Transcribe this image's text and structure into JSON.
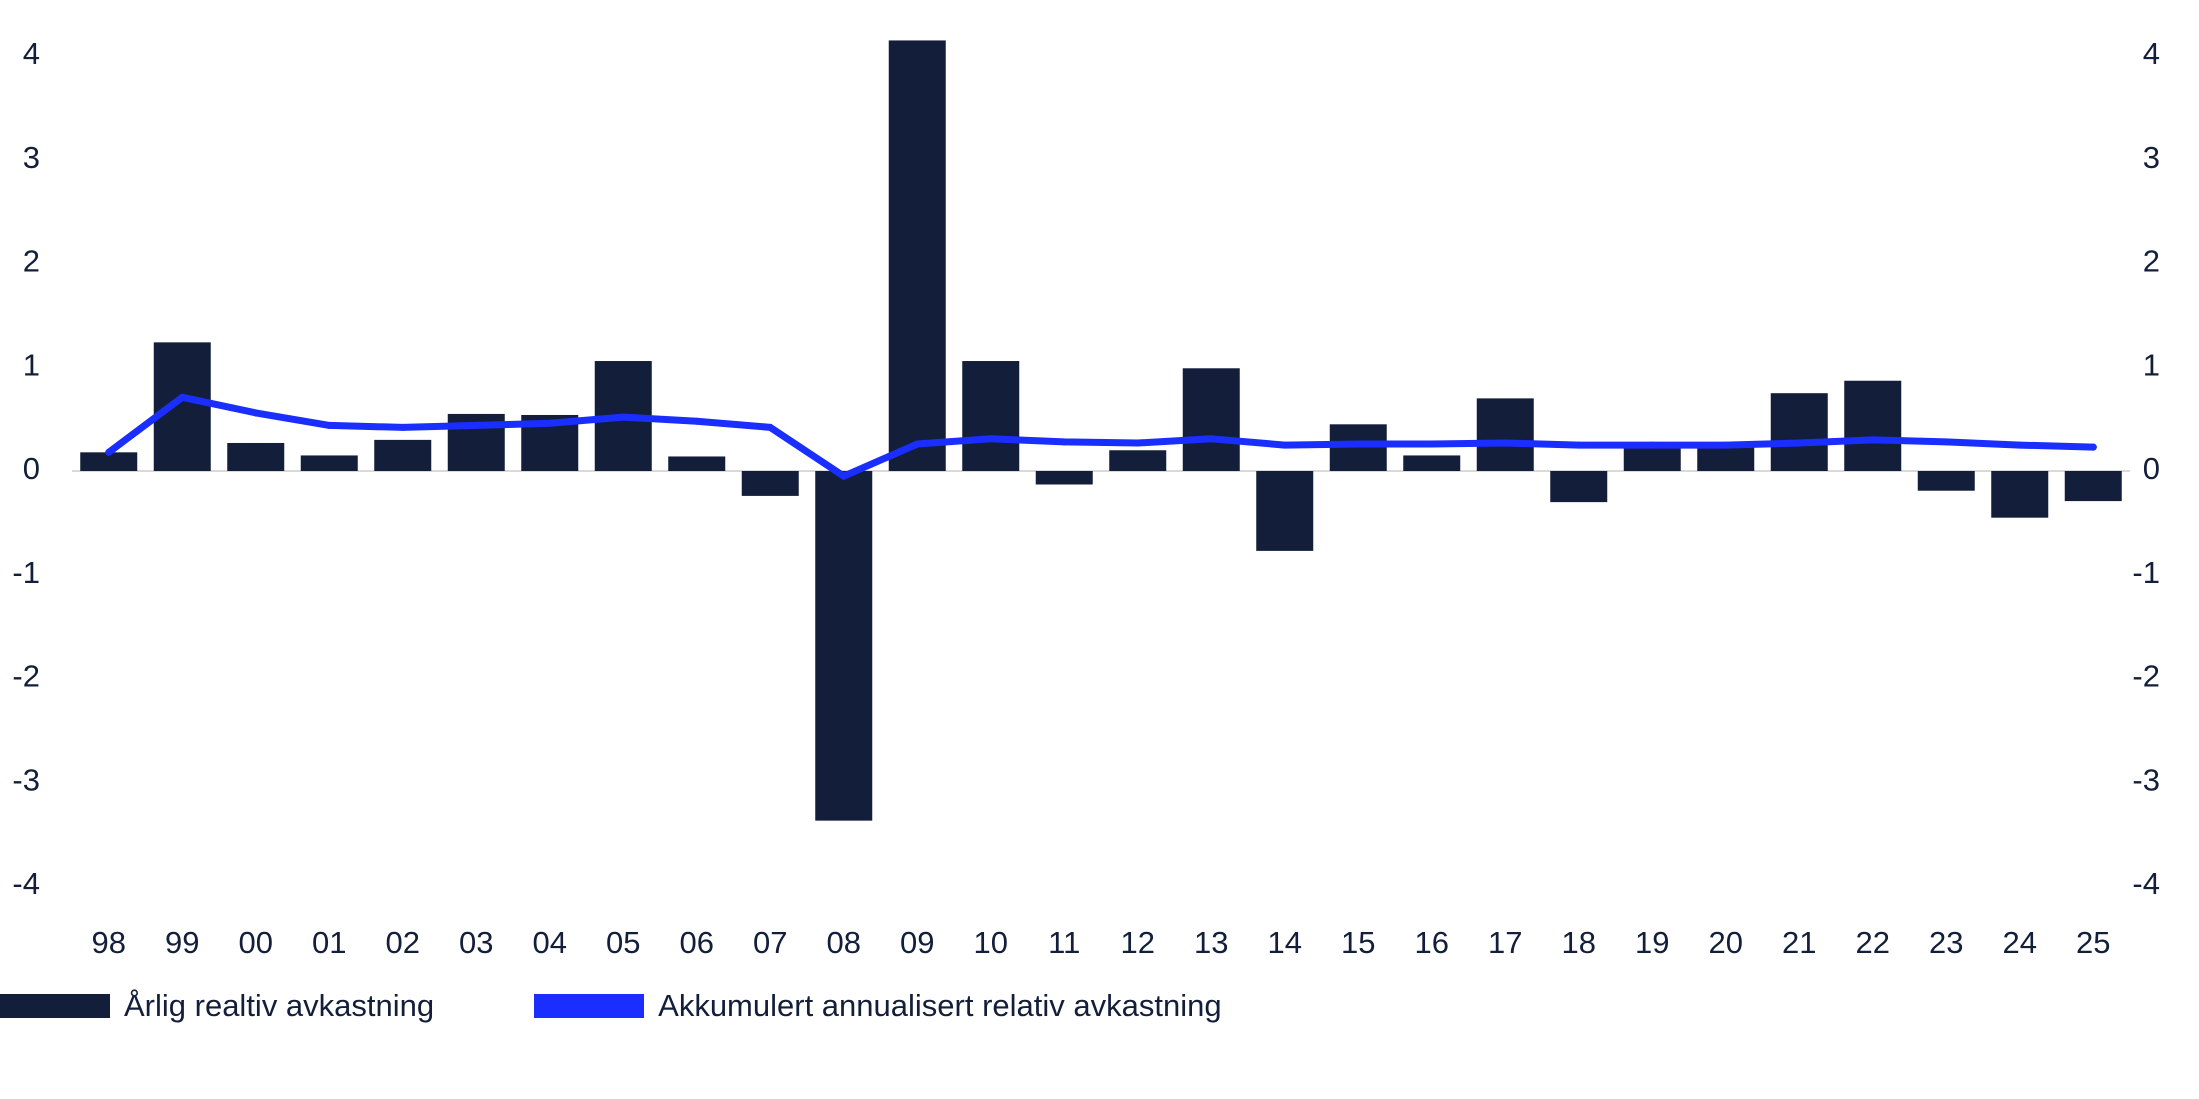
{
  "chart_data": {
    "type": "bar",
    "categories": [
      "98",
      "99",
      "00",
      "01",
      "02",
      "03",
      "04",
      "05",
      "06",
      "07",
      "08",
      "09",
      "10",
      "11",
      "12",
      "13",
      "14",
      "15",
      "16",
      "17",
      "18",
      "19",
      "20",
      "21",
      "22",
      "23",
      "24",
      "25"
    ],
    "series": [
      {
        "name": "Årlig realtiv avkastning",
        "type": "bar",
        "color": "#131e3a",
        "values": [
          0.18,
          1.24,
          0.27,
          0.15,
          0.3,
          0.55,
          0.54,
          1.06,
          0.14,
          -0.24,
          -3.37,
          4.15,
          1.06,
          -0.13,
          0.2,
          0.99,
          -0.77,
          0.45,
          0.15,
          0.7,
          -0.3,
          0.23,
          0.24,
          0.75,
          0.87,
          -0.19,
          -0.45,
          -0.29
        ]
      },
      {
        "name": "Akkumulert annualisert relativ avkastning",
        "type": "line",
        "color": "#1a2eff",
        "values": [
          0.18,
          0.71,
          0.56,
          0.44,
          0.42,
          0.44,
          0.46,
          0.52,
          0.48,
          0.42,
          -0.05,
          0.26,
          0.31,
          0.28,
          0.27,
          0.31,
          0.25,
          0.26,
          0.26,
          0.27,
          0.25,
          0.25,
          0.25,
          0.27,
          0.3,
          0.28,
          0.25,
          0.23
        ]
      }
    ],
    "yticks": [
      "4",
      "3",
      "2",
      "1",
      "0",
      "-1",
      "-2",
      "-3",
      "-4"
    ],
    "ylim": [
      -4,
      4
    ],
    "y2ticks": [
      "4",
      "3",
      "2",
      "1",
      "0",
      "-1",
      "-2",
      "-3",
      "-4"
    ],
    "y2lim": [
      -4,
      4
    ],
    "grid": false,
    "legend_position": "bottom-left"
  }
}
